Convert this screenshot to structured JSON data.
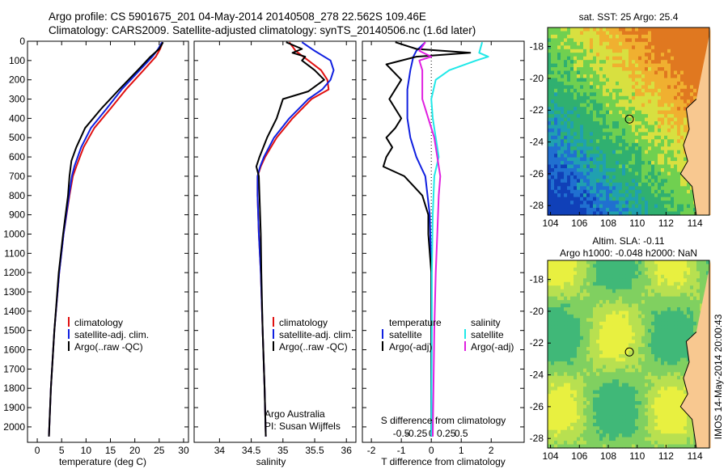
{
  "header": {
    "line1": "Argo profile: CS 5901675_201 04-May-2014 20140508_278 22.562S 109.46E",
    "line2": "Climatology: CARS2009. Satellite-adjusted climatology: synTS_20140506.nc (1.6d later)"
  },
  "timestamp": "IMOS 14-May-2014 20:00:43",
  "colors": {
    "climatology": "#e01010",
    "satellite": "#1020e0",
    "argo": "#000000",
    "salinity_satellite": "#20e8e8",
    "salinity_argo": "#e020e0",
    "ocean_deep": "#1050c0",
    "ocean_green": "#40c060",
    "ocean_warm": "#e08020",
    "land": "#f8c890"
  },
  "panels": {
    "temperature": {
      "xlabel": "temperature (deg C)",
      "legend": [
        "climatology",
        "satellite-adj. clim.",
        "Argo(..raw -QC)"
      ]
    },
    "salinity": {
      "xlabel": "salinity",
      "legend": [
        "climatology",
        "satellite-adj. clim.",
        "Argo(..raw -QC)"
      ],
      "credit1": "Argo Australia",
      "credit2": "PI: Susan Wijffels"
    },
    "difference": {
      "xlabel_bottom": "T difference from climatology",
      "xlabel_top": "S difference from climatology",
      "legend_t_title": "temperature",
      "legend_s_title": "salinity",
      "legend_t": [
        "satellite",
        "Argo(-adj)"
      ],
      "legend_s": [
        "satellite",
        "Argo(-adj)"
      ]
    },
    "sst_map": {
      "title": "sat. SST: 25 Argo: 25.4"
    },
    "sla_map": {
      "title1": "Altim. SLA: -0.11",
      "title2": "Argo h1000: -0.048 h2000: NaN"
    }
  },
  "chart_data": [
    {
      "type": "line",
      "name": "temperature profile",
      "xlabel": "temperature (deg C)",
      "xlim": [
        -2,
        31
      ],
      "ylim": [
        2080,
        0
      ],
      "xticks": [
        0,
        5,
        10,
        15,
        20,
        25,
        30
      ],
      "yticks": [
        0,
        100,
        200,
        300,
        400,
        500,
        600,
        700,
        800,
        900,
        1000,
        1100,
        1200,
        1300,
        1400,
        1500,
        1600,
        1700,
        1800,
        1900,
        2000
      ],
      "series": [
        {
          "name": "climatology",
          "y": [
            5,
            40,
            80,
            150,
            250,
            350,
            450,
            550,
            650,
            700,
            800,
            1000,
            1200,
            1500,
            1800,
            2050
          ],
          "x": [
            25.7,
            25.2,
            24.3,
            21.8,
            18.2,
            15.0,
            11.7,
            9.5,
            8.0,
            7.3,
            6.6,
            5.4,
            4.5,
            3.5,
            2.8,
            2.4
          ]
        },
        {
          "name": "satellite-adj. clim.",
          "y": [
            5,
            40,
            80,
            150,
            250,
            350,
            450,
            550,
            650,
            700,
            800,
            1000,
            1200,
            1500,
            1800,
            2050
          ],
          "x": [
            25.6,
            24.8,
            23.6,
            21.0,
            17.3,
            14.2,
            11.0,
            9.0,
            7.6,
            7.1,
            6.5,
            5.4,
            4.5,
            3.5,
            2.8,
            2.4
          ]
        },
        {
          "name": "Argo(..raw -QC)",
          "y": [
            5,
            40,
            80,
            150,
            250,
            350,
            450,
            550,
            620,
            700,
            800,
            1000,
            1200,
            1500,
            1800,
            2050
          ],
          "x": [
            25.8,
            25.0,
            23.2,
            20.6,
            16.8,
            13.1,
            9.8,
            8.0,
            7.0,
            6.6,
            6.3,
            5.3,
            4.4,
            3.5,
            2.8,
            2.4
          ]
        }
      ]
    },
    {
      "type": "line",
      "name": "salinity profile",
      "xlabel": "salinity",
      "xlim": [
        33.6,
        36.15
      ],
      "ylim": [
        2080,
        0
      ],
      "xticks": [
        34,
        34.5,
        35,
        35.5,
        36
      ],
      "series": [
        {
          "name": "climatology",
          "y": [
            5,
            50,
            100,
            150,
            200,
            250,
            300,
            400,
            500,
            600,
            650,
            700,
            800,
            1000,
            1200,
            1500,
            1800,
            2050
          ],
          "x": [
            35.1,
            35.2,
            35.4,
            35.6,
            35.7,
            35.72,
            35.45,
            35.15,
            34.9,
            34.72,
            34.65,
            34.6,
            34.6,
            34.62,
            34.65,
            34.68,
            34.71,
            34.73
          ]
        },
        {
          "name": "satellite-adj. clim.",
          "y": [
            5,
            50,
            100,
            150,
            200,
            250,
            300,
            400,
            500,
            600,
            650,
            700,
            800,
            1000,
            1200,
            1500,
            1800,
            2050
          ],
          "x": [
            35.3,
            35.5,
            35.75,
            35.8,
            35.75,
            35.62,
            35.4,
            35.1,
            34.86,
            34.7,
            34.64,
            34.6,
            34.6,
            34.62,
            34.65,
            34.68,
            34.71,
            34.73
          ]
        },
        {
          "name": "Argo(..raw -QC)",
          "y": [
            5,
            40,
            60,
            80,
            100,
            150,
            200,
            260,
            300,
            400,
            500,
            600,
            650,
            700,
            800,
            1000,
            1200,
            1500,
            1800,
            2050
          ],
          "x": [
            35.05,
            35.3,
            35.15,
            35.35,
            35.3,
            35.5,
            35.65,
            35.4,
            35.0,
            34.9,
            34.75,
            34.63,
            34.58,
            34.62,
            34.63,
            34.65,
            34.66,
            34.68,
            34.71,
            34.73
          ]
        }
      ]
    },
    {
      "type": "line",
      "name": "difference from climatology",
      "xlabel": "T difference from climatology",
      "xlabel_top": "S difference from climatology",
      "xlim": [
        -2.3,
        3.1
      ],
      "ylim": [
        2080,
        0
      ],
      "xticks": [
        -2,
        -1,
        0,
        1,
        2
      ],
      "xticks_top": [
        -0.5,
        -0.25,
        0,
        0.25,
        0.5
      ],
      "series": [
        {
          "name": "temperature satellite",
          "y": [
            5,
            50,
            80,
            150,
            250,
            400,
            500,
            600,
            650,
            700,
            900,
            1200,
            1500,
            2050
          ],
          "x": [
            -0.2,
            -0.5,
            -0.6,
            -0.7,
            -0.8,
            -0.8,
            -0.7,
            -0.5,
            -0.35,
            -0.2,
            -0.05,
            0,
            0,
            0
          ]
        },
        {
          "name": "temperature Argo(-adj)",
          "y": [
            5,
            40,
            60,
            80,
            120,
            200,
            300,
            400,
            450,
            500,
            550,
            600,
            650,
            700,
            750,
            800,
            900,
            1000,
            1200,
            1500,
            1800,
            2050
          ],
          "x": [
            -1.2,
            -0.5,
            1.3,
            -0.5,
            -1.5,
            -1.0,
            -1.4,
            -1.0,
            -1.2,
            -1.5,
            -1.3,
            -1.5,
            -1.6,
            -0.9,
            -0.6,
            -0.3,
            -0.1,
            -0.1,
            0,
            0,
            0,
            0
          ]
        },
        {
          "name": "salinity satellite",
          "y": [
            5,
            60,
            80,
            100,
            150,
            200,
            300,
            400,
            500,
            600,
            700,
            900,
            1200,
            1500,
            2050
          ],
          "x": [
            1.7,
            1.6,
            1.9,
            1.5,
            0.6,
            0.15,
            0,
            0.05,
            0.15,
            0.25,
            0.1,
            0.05,
            0.02,
            0.02,
            0
          ]
        },
        {
          "name": "salinity Argo(-adj)",
          "y": [
            5,
            50,
            80,
            100,
            150,
            200,
            300,
            400,
            500,
            600,
            700,
            800,
            1000,
            1200,
            1500,
            2050
          ],
          "x": [
            -0.2,
            -0.4,
            0,
            -0.4,
            -0.3,
            -0.3,
            -0.3,
            -0.1,
            0.1,
            0.2,
            0.3,
            0.25,
            0.2,
            0.15,
            0.1,
            0.05
          ]
        }
      ]
    }
  ],
  "maps": {
    "xticks": [
      "104",
      "106",
      "108",
      "110",
      "112",
      "114"
    ],
    "yticks": [
      "-18",
      "-20",
      "-22",
      "-24",
      "-26",
      "-28"
    ],
    "argo_position": {
      "lon": 109.46,
      "lat": -22.562
    }
  }
}
